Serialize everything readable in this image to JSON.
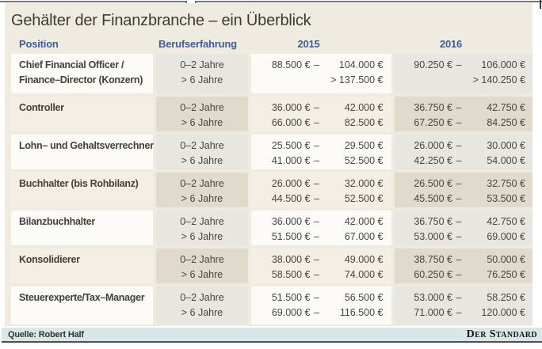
{
  "title": "Gehälter der Finanzbranche – ein Überblick",
  "table": {
    "columns": {
      "position": "Position",
      "experience": "Berufserfahrung",
      "y2015": "2015",
      "y2016": "2016"
    },
    "rows": [
      {
        "position": [
          "Chief Financial Officer /",
          "Finance–Director (Konzern)"
        ],
        "experience": [
          "0–2 Jahre",
          "> 6 Jahre"
        ],
        "salary2015": [
          [
            "88.500 €",
            "–",
            "104.000 €"
          ],
          [
            "",
            "",
            "> 137.500 €"
          ]
        ],
        "salary2016": [
          [
            "90.250 €",
            "–",
            "106.000 €"
          ],
          [
            "",
            "",
            "> 140.250 €"
          ]
        ]
      },
      {
        "position": [
          "Controller"
        ],
        "experience": [
          "0–2 Jahre",
          "> 6 Jahre"
        ],
        "salary2015": [
          [
            "36.000 €",
            "–",
            "42.000 €"
          ],
          [
            "66.000 €",
            "–",
            "82.500 €"
          ]
        ],
        "salary2016": [
          [
            "36.750 €",
            "–",
            "42.750 €"
          ],
          [
            "67.250 €",
            "–",
            "84.250 €"
          ]
        ]
      },
      {
        "position": [
          "Lohn– und Gehaltsverrechner"
        ],
        "experience": [
          "0–2 Jahre",
          "> 6 Jahre"
        ],
        "salary2015": [
          [
            "25.500 €",
            "–",
            "29.500 €"
          ],
          [
            "41.000 €",
            "–",
            "52.500 €"
          ]
        ],
        "salary2016": [
          [
            "26.000 €",
            "–",
            "30.000 €"
          ],
          [
            "42.250 €",
            "–",
            "54.000 €"
          ]
        ]
      },
      {
        "position": [
          "Buchhalter (bis Rohbilanz)"
        ],
        "experience": [
          "0–2 Jahre",
          "> 6 Jahre"
        ],
        "salary2015": [
          [
            "26.000 €",
            "–",
            "32.000 €"
          ],
          [
            "44.500 €",
            "–",
            "52.500 €"
          ]
        ],
        "salary2016": [
          [
            "26.500 €",
            "–",
            "32.750 €"
          ],
          [
            "45.500 €",
            "–",
            "53.500 €"
          ]
        ]
      },
      {
        "position": [
          "Bilanzbuchhalter"
        ],
        "experience": [
          "0–2 Jahre",
          "> 6 Jahre"
        ],
        "salary2015": [
          [
            "36.000 €",
            "–",
            "42.000 €"
          ],
          [
            "51.500 €",
            "–",
            "67.000 €"
          ]
        ],
        "salary2016": [
          [
            "36.750 €",
            "–",
            "42.750 €"
          ],
          [
            "53.000 €",
            "–",
            "69.000 €"
          ]
        ]
      },
      {
        "position": [
          "Konsolidierer"
        ],
        "experience": [
          "0–2 Jahre",
          "> 6 Jahre"
        ],
        "salary2015": [
          [
            "38.000 €",
            "–",
            "49.000 €"
          ],
          [
            "58.500 €",
            "–",
            "74.000 €"
          ]
        ],
        "salary2016": [
          [
            "38.750 €",
            "–",
            "50.000 €"
          ],
          [
            "60.250 €",
            "–",
            "76.250 €"
          ]
        ]
      },
      {
        "position": [
          "Steuerexperte/Tax–Manager"
        ],
        "experience": [
          "0–2 Jahre",
          "> 6 Jahre"
        ],
        "salary2015": [
          [
            "51.500 €",
            "–",
            "56.500 €"
          ],
          [
            "69.000 €",
            "–",
            "116.500 €"
          ]
        ],
        "salary2016": [
          [
            "53.000 €",
            "–",
            "58.250 €"
          ],
          [
            "71.000 €",
            "–",
            "120.000 €"
          ]
        ]
      }
    ]
  },
  "footer": {
    "source": "Quelle: Robert Half",
    "brand": "Der Standard"
  },
  "colors": {
    "panel_bg": "#f0ebe0",
    "row_light": "#fcfbf7",
    "cell_gray": "#e8e6e1",
    "row_even_light": "#f3efe5",
    "cell_even_gray": "#e0dacc",
    "header_blue": "#3d5e9c",
    "title_text": "#3b3a36",
    "body_text": "#4a463f",
    "footer_bg": "#d8e8e9",
    "line_dark": "#4f4f4f"
  },
  "chart_data": {
    "type": "table",
    "title": "Gehälter der Finanzbranche – ein Überblick",
    "columns": [
      "Position",
      "Berufserfahrung",
      "2015",
      "2016"
    ],
    "rows": [
      [
        "Chief Financial Officer / Finance–Director (Konzern)",
        "0–2 Jahre",
        "88.500 € – 104.000 €",
        "90.250 € – 106.000 €"
      ],
      [
        "Chief Financial Officer / Finance–Director (Konzern)",
        "> 6 Jahre",
        "> 137.500 €",
        "> 140.250 €"
      ],
      [
        "Controller",
        "0–2 Jahre",
        "36.000 € – 42.000 €",
        "36.750 € – 42.750 €"
      ],
      [
        "Controller",
        "> 6 Jahre",
        "66.000 € – 82.500 €",
        "67.250 € – 84.250 €"
      ],
      [
        "Lohn– und Gehaltsverrechner",
        "0–2 Jahre",
        "25.500 € – 29.500 €",
        "26.000 € – 30.000 €"
      ],
      [
        "Lohn– und Gehaltsverrechner",
        "> 6 Jahre",
        "41.000 € – 52.500 €",
        "42.250 € – 54.000 €"
      ],
      [
        "Buchhalter (bis Rohbilanz)",
        "0–2 Jahre",
        "26.000 € – 32.000 €",
        "26.500 € – 32.750 €"
      ],
      [
        "Buchhalter (bis Rohbilanz)",
        "> 6 Jahre",
        "44.500 € – 52.500 €",
        "45.500 € – 53.500 €"
      ],
      [
        "Bilanzbuchhalter",
        "0–2 Jahre",
        "36.000 € – 42.000 €",
        "36.750 € – 42.750 €"
      ],
      [
        "Bilanzbuchhalter",
        "> 6 Jahre",
        "51.500 € – 67.000 €",
        "53.000 € – 69.000 €"
      ],
      [
        "Konsolidierer",
        "0–2 Jahre",
        "38.000 € – 49.000 €",
        "38.750 € – 50.000 €"
      ],
      [
        "Konsolidierer",
        "> 6 Jahre",
        "58.500 € – 74.000 €",
        "60.250 € – 76.250 €"
      ],
      [
        "Steuerexperte/Tax–Manager",
        "0–2 Jahre",
        "51.500 € – 56.500 €",
        "53.000 € – 58.250 €"
      ],
      [
        "Steuerexperte/Tax–Manager",
        "> 6 Jahre",
        "69.000 € – 116.500 €",
        "71.000 € – 120.000 €"
      ]
    ],
    "source": "Quelle: Robert Half",
    "publisher": "Der Standard"
  }
}
